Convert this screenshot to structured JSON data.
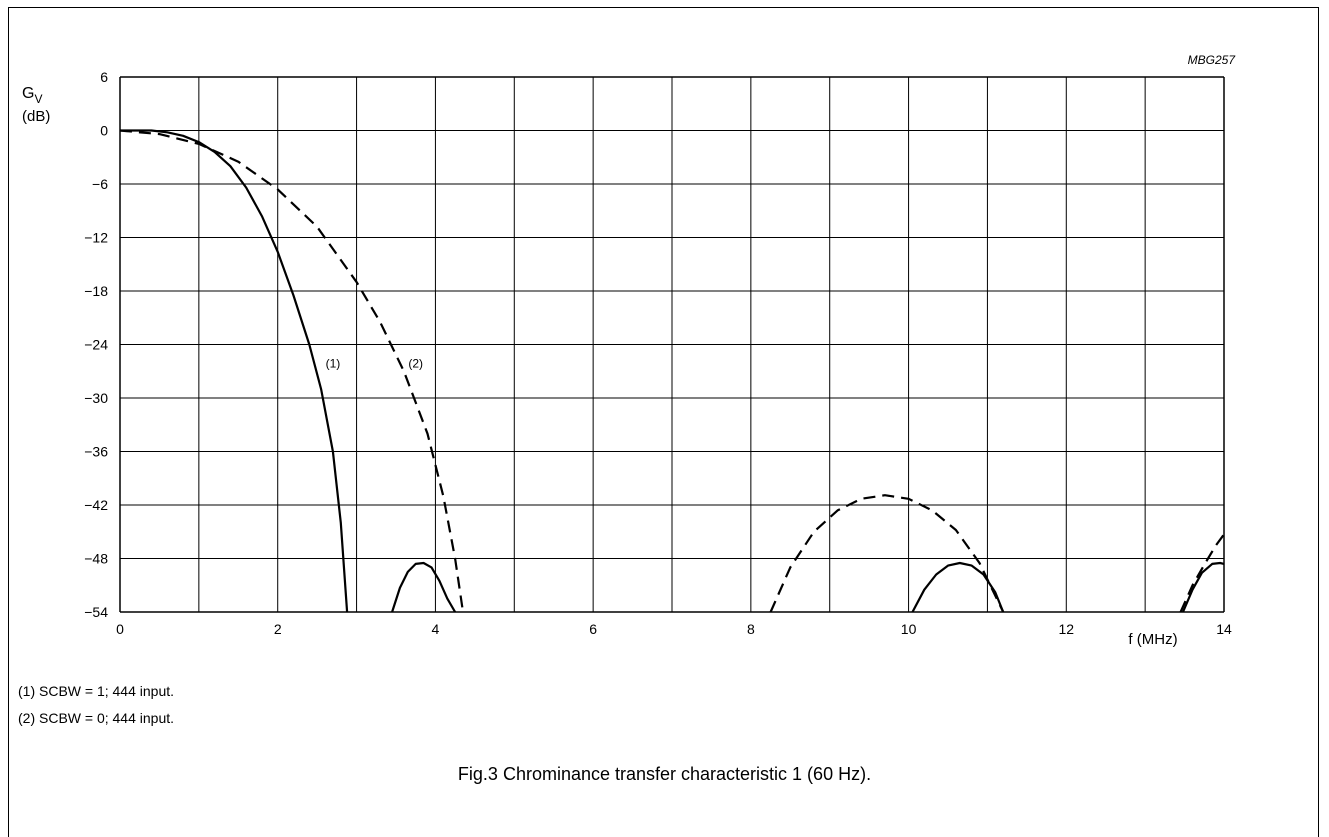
{
  "figure": {
    "code": "MBG257",
    "caption": "Fig.3  Chrominance transfer characteristic 1 (60 Hz).",
    "notes": [
      "(1)  SCBW = 1; 444 input.",
      "(2)  SCBW = 0; 444 input."
    ]
  },
  "chart_data": {
    "type": "line",
    "title": "",
    "ylabel": "G",
    "ylabel_sub": "V",
    "yunit": "(dB)",
    "xlabel": "f  (MHz)",
    "xlim": [
      0,
      14
    ],
    "ylim": [
      -54,
      6
    ],
    "x_ticks": [
      0,
      2,
      4,
      6,
      8,
      10,
      12,
      14
    ],
    "x_tick_labels": [
      "0",
      "2",
      "4",
      "6",
      "8",
      "10",
      "12",
      "14"
    ],
    "y_ticks": [
      6,
      0,
      -6,
      -12,
      -18,
      -24,
      -30,
      -36,
      -42,
      -48,
      -54
    ],
    "y_tick_labels": [
      "6",
      "0",
      "−6",
      "−12",
      "−18",
      "−24",
      "−30",
      "−36",
      "−42",
      "−48",
      "−54"
    ],
    "x_grid_step": 1,
    "y_grid_step": 6,
    "grid": true,
    "series": [
      {
        "name": "(1)",
        "style": "solid",
        "label_pos": {
          "x": 2.7,
          "y": -26
        },
        "segments": [
          [
            [
              0,
              0
            ],
            [
              0.2,
              0
            ],
            [
              0.4,
              0
            ],
            [
              0.6,
              -0.2
            ],
            [
              0.8,
              -0.6
            ],
            [
              1.0,
              -1.3
            ],
            [
              1.2,
              -2.4
            ],
            [
              1.4,
              -4.0
            ],
            [
              1.6,
              -6.4
            ],
            [
              1.8,
              -9.6
            ],
            [
              2.0,
              -13.6
            ],
            [
              2.2,
              -18.5
            ],
            [
              2.4,
              -24.0
            ],
            [
              2.55,
              -29.0
            ],
            [
              2.7,
              -36.0
            ],
            [
              2.8,
              -44.0
            ],
            [
              2.88,
              -54
            ]
          ],
          [
            [
              3.45,
              -54
            ],
            [
              3.55,
              -51.3
            ],
            [
              3.65,
              -49.5
            ],
            [
              3.75,
              -48.6
            ],
            [
              3.85,
              -48.5
            ],
            [
              3.95,
              -49.0
            ],
            [
              4.05,
              -50.5
            ],
            [
              4.15,
              -52.5
            ],
            [
              4.25,
              -54
            ]
          ],
          [
            [
              10.05,
              -54
            ],
            [
              10.2,
              -51.5
            ],
            [
              10.35,
              -49.8
            ],
            [
              10.5,
              -48.8
            ],
            [
              10.65,
              -48.5
            ],
            [
              10.8,
              -48.8
            ],
            [
              10.95,
              -49.8
            ],
            [
              11.1,
              -51.8
            ],
            [
              11.2,
              -54
            ]
          ],
          [
            [
              13.48,
              -54
            ],
            [
              13.6,
              -51.5
            ],
            [
              13.72,
              -49.6
            ],
            [
              13.85,
              -48.6
            ],
            [
              13.95,
              -48.5
            ],
            [
              14.0,
              -48.6
            ]
          ]
        ]
      },
      {
        "name": "(2)",
        "style": "dashed",
        "label_pos": {
          "x": 3.75,
          "y": -26
        },
        "segments": [
          [
            [
              0,
              0
            ],
            [
              0.5,
              -0.4
            ],
            [
              1.0,
              -1.5
            ],
            [
              1.5,
              -3.5
            ],
            [
              2.0,
              -6.6
            ],
            [
              2.5,
              -10.8
            ],
            [
              3.0,
              -17.0
            ],
            [
              3.3,
              -21.5
            ],
            [
              3.6,
              -27.0
            ],
            [
              3.9,
              -34.0
            ],
            [
              4.1,
              -41.0
            ],
            [
              4.25,
              -48.0
            ],
            [
              4.35,
              -54
            ]
          ],
          [
            [
              8.25,
              -54
            ],
            [
              8.5,
              -49.0
            ],
            [
              8.8,
              -45.0
            ],
            [
              9.1,
              -42.6
            ],
            [
              9.4,
              -41.3
            ],
            [
              9.7,
              -40.9
            ],
            [
              10.0,
              -41.3
            ],
            [
              10.3,
              -42.6
            ],
            [
              10.6,
              -44.8
            ],
            [
              10.9,
              -48.5
            ],
            [
              11.2,
              -54
            ]
          ],
          [
            [
              13.45,
              -54
            ],
            [
              13.6,
              -51.0
            ],
            [
              13.75,
              -48.7
            ],
            [
              13.9,
              -46.5
            ],
            [
              14.0,
              -45.3
            ]
          ]
        ]
      }
    ]
  }
}
